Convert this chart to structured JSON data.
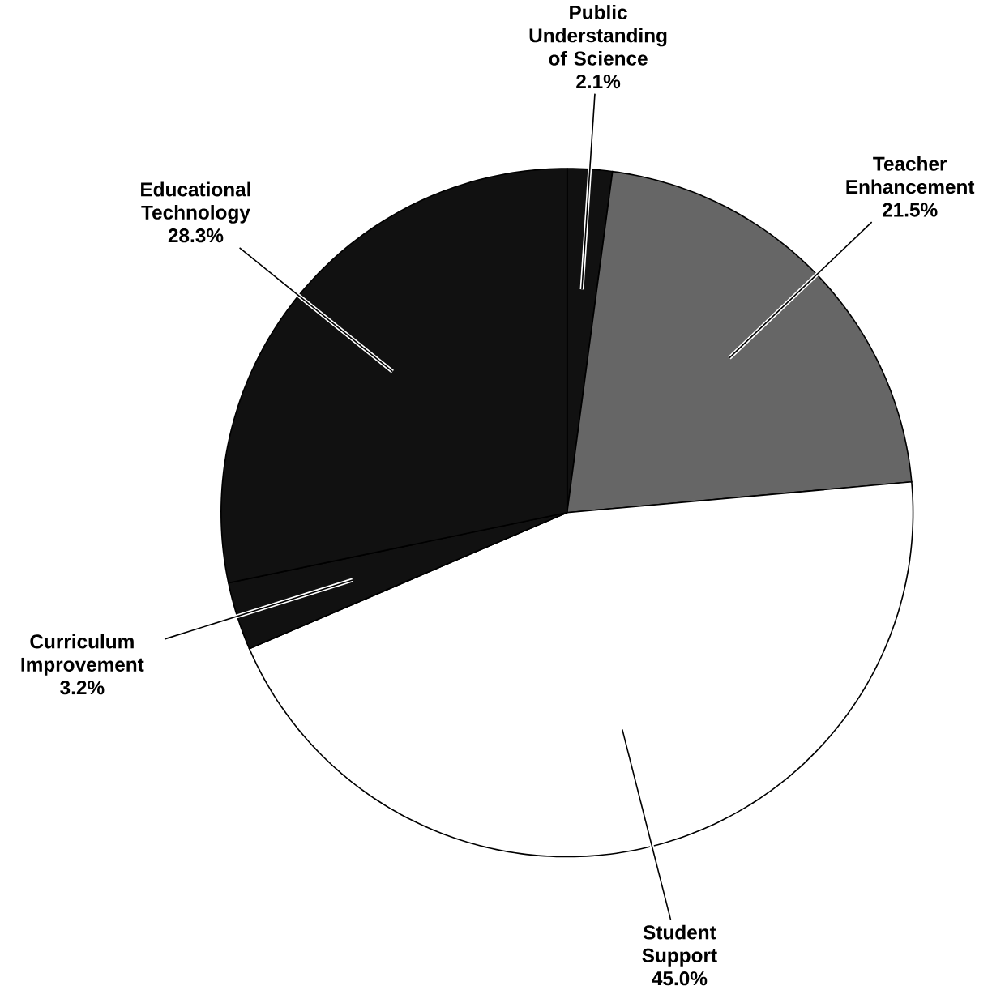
{
  "chart_data": {
    "type": "pie",
    "categories": [
      "Public Understanding of Science",
      "Teacher Enhancement",
      "Student Support",
      "Curriculum Improvement",
      "Educational Technology"
    ],
    "values": [
      2.1,
      21.5,
      45.0,
      3.2,
      28.3
    ],
    "value_labels": [
      "2.1%",
      "21.5%",
      "45.0%",
      "3.2%",
      "28.3%"
    ],
    "colors": [
      "#111111",
      "#666666",
      "#ffffff",
      "#111111",
      "#111111"
    ]
  }
}
